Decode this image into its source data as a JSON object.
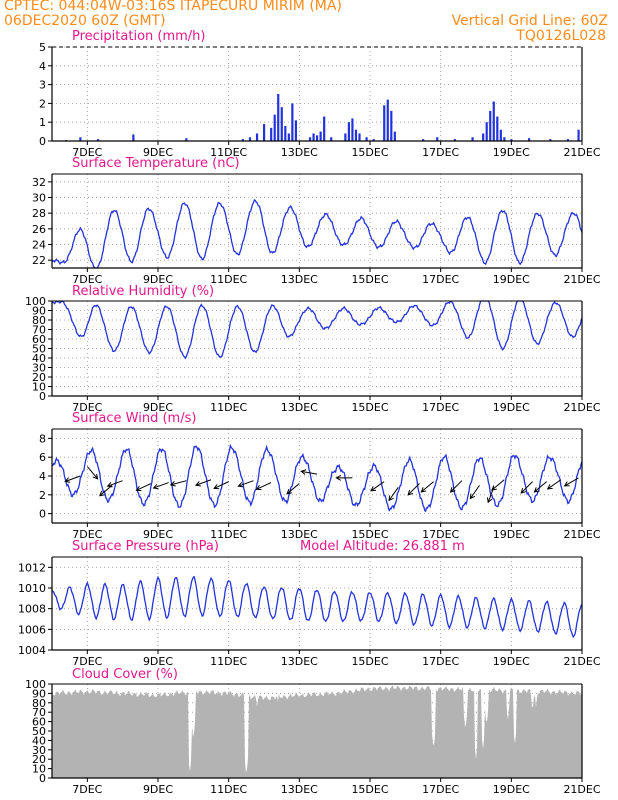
{
  "header": {
    "line1_left": "CPTEC:   044:04W-03:16S   ITAPECURU MIRIM (MA)",
    "line2_left": "06DEC2020 60Z (GMT)",
    "line2_right": "Vertical Grid Line: 60Z",
    "line3_right": "TQ0126L028"
  },
  "colors": {
    "header": "#ff8c1a",
    "title": "#e8178a",
    "series": "#2233dd",
    "cloud": "#b3b3b3",
    "grid": "#999999"
  },
  "x_axis": {
    "start_day": 6.0,
    "end_day": 21.0,
    "tick_days": [
      7,
      9,
      11,
      13,
      15,
      17,
      19,
      21
    ],
    "tick_labels": [
      "7DEC",
      "9DEC",
      "11DEC",
      "13DEC",
      "15DEC",
      "17DEC",
      "19DEC",
      "21DEC"
    ]
  },
  "chart_data": [
    {
      "id": "precip",
      "type": "bar",
      "title": "Precipitation (mm/h)",
      "ylim": [
        0,
        5
      ],
      "yticks": [
        0,
        1,
        2,
        3,
        4,
        5
      ],
      "grid": true,
      "x": [
        6.4,
        6.8,
        7.3,
        8.3,
        9.8,
        11.4,
        11.6,
        11.8,
        12.0,
        12.2,
        12.3,
        12.4,
        12.5,
        12.6,
        12.7,
        12.8,
        12.9,
        13.3,
        13.4,
        13.5,
        13.6,
        13.7,
        13.9,
        14.3,
        14.4,
        14.5,
        14.6,
        14.7,
        14.9,
        15.1,
        15.4,
        15.5,
        15.6,
        15.7,
        16.5,
        16.9,
        17.4,
        17.9,
        18.2,
        18.3,
        18.4,
        18.5,
        18.6,
        18.7,
        18.8,
        19.0,
        19.5,
        20.1,
        20.6,
        20.9
      ],
      "values": [
        0.05,
        0.2,
        0.1,
        0.35,
        0.15,
        0.1,
        0.2,
        0.4,
        0.9,
        0.7,
        1.4,
        2.5,
        1.8,
        0.8,
        0.4,
        2.0,
        1.1,
        0.2,
        0.4,
        0.3,
        0.5,
        1.3,
        0.2,
        0.4,
        1.0,
        1.2,
        0.6,
        0.4,
        0.2,
        0.1,
        1.9,
        2.2,
        1.6,
        0.5,
        0.1,
        0.2,
        0.1,
        0.2,
        0.4,
        1.0,
        1.6,
        2.1,
        1.3,
        0.6,
        0.2,
        0.1,
        0.15,
        0.1,
        0.1,
        0.6
      ]
    },
    {
      "id": "temp",
      "type": "line",
      "title": "Surface Temperature (nC)",
      "ylim": [
        21,
        33
      ],
      "yticks": [
        22,
        24,
        26,
        28,
        30,
        32
      ],
      "grid": true,
      "mean": [
        22.0,
        23.8,
        25.2,
        25.5,
        25.8,
        26.0,
        26.2,
        26.0,
        25.8,
        25.4,
        25.2,
        25.0,
        24.8,
        25.0,
        25.2,
        25.5,
        25.8,
        26.0,
        26.0
      ],
      "amp": [
        0.0,
        3.2,
        3.6,
        3.0,
        3.8,
        3.2,
        3.5,
        2.4,
        1.8,
        1.8,
        1.6,
        1.6,
        3.0,
        3.6,
        2.6,
        2.6,
        2.2,
        3.0,
        3.6
      ],
      "peak_phase": 0.75
    },
    {
      "id": "rh",
      "type": "line",
      "title": "Relative Humidity (%)",
      "ylim": [
        0,
        100
      ],
      "yticks": [
        0,
        10,
        20,
        30,
        40,
        50,
        60,
        70,
        80,
        90,
        100
      ],
      "grid": true,
      "mean": [
        100,
        74,
        70,
        70,
        68,
        68,
        72,
        80,
        82,
        84,
        86,
        85,
        82,
        76,
        78,
        82,
        82,
        84,
        86
      ],
      "amp": [
        0,
        22,
        24,
        24,
        28,
        26,
        24,
        12,
        10,
        8,
        8,
        12,
        24,
        28,
        20,
        18,
        14,
        22,
        24
      ],
      "trough_phase": 0.75
    },
    {
      "id": "wind",
      "type": "line",
      "title": "Surface Wind (m/s)",
      "ylim": [
        -1,
        9
      ],
      "yticks": [
        0,
        2,
        4,
        6,
        8
      ],
      "grid": true,
      "mean": [
        4,
        4.2,
        4.0,
        3.8,
        3.9,
        4.0,
        4.1,
        3.8,
        3.2,
        2.8,
        3.0,
        3.2,
        3.2,
        3.6,
        3.8,
        3.6,
        3.4,
        3.6,
        4.0
      ],
      "amp": [
        1.5,
        2.5,
        2.8,
        3.0,
        3.2,
        3.0,
        2.8,
        2.4,
        1.8,
        2.2,
        2.6,
        2.8,
        2.6,
        2.6,
        2.2,
        2.4,
        2.4,
        2.8,
        2.8
      ],
      "arrows": [
        {
          "x": 6.8,
          "y": 4.0,
          "dir": 250
        },
        {
          "x": 7.0,
          "y": 5.0,
          "dir": 140
        },
        {
          "x": 7.7,
          "y": 3.0,
          "dir": 230
        },
        {
          "x": 8.0,
          "y": 3.5,
          "dir": 250
        },
        {
          "x": 8.8,
          "y": 3.2,
          "dir": 245
        },
        {
          "x": 9.3,
          "y": 3.3,
          "dir": 250
        },
        {
          "x": 9.8,
          "y": 3.5,
          "dir": 255
        },
        {
          "x": 10.5,
          "y": 3.6,
          "dir": 250
        },
        {
          "x": 11.0,
          "y": 3.4,
          "dir": 245
        },
        {
          "x": 11.7,
          "y": 3.5,
          "dir": 250
        },
        {
          "x": 12.2,
          "y": 3.3,
          "dir": 245
        },
        {
          "x": 13.0,
          "y": 3.2,
          "dir": 230
        },
        {
          "x": 13.5,
          "y": 4.2,
          "dir": 280
        },
        {
          "x": 14.5,
          "y": 3.8,
          "dir": 270
        },
        {
          "x": 15.4,
          "y": 3.4,
          "dir": 235
        },
        {
          "x": 15.8,
          "y": 2.8,
          "dir": 215
        },
        {
          "x": 16.4,
          "y": 3.2,
          "dir": 225
        },
        {
          "x": 16.8,
          "y": 3.4,
          "dir": 230
        },
        {
          "x": 17.6,
          "y": 3.5,
          "dir": 225
        },
        {
          "x": 18.1,
          "y": 3.0,
          "dir": 215
        },
        {
          "x": 18.5,
          "y": 2.8,
          "dir": 200
        },
        {
          "x": 18.8,
          "y": 3.6,
          "dir": 230
        },
        {
          "x": 19.6,
          "y": 3.4,
          "dir": 225
        },
        {
          "x": 20.0,
          "y": 3.4,
          "dir": 230
        },
        {
          "x": 20.4,
          "y": 3.6,
          "dir": 235
        },
        {
          "x": 20.9,
          "y": 3.8,
          "dir": 240
        }
      ]
    },
    {
      "id": "press",
      "type": "line",
      "title": "Surface Pressure (hPa)",
      "annotation": "Model Altitude: 26.881  m",
      "ylim": [
        1004,
        1013
      ],
      "yticks": [
        1004,
        1006,
        1008,
        1010,
        1012
      ],
      "grid": true,
      "mean": [
        1009,
        1008.8,
        1008.6,
        1009.0,
        1009.2,
        1009.0,
        1008.6,
        1008.4,
        1008.2,
        1008.2,
        1008.0,
        1007.8,
        1007.6,
        1007.4,
        1007.2,
        1006.8,
        1006.2,
        1005.6,
        1005.2
      ],
      "amp": [
        0.8,
        1.6,
        1.7,
        1.9,
        1.8,
        1.7,
        1.5,
        1.6,
        1.5,
        1.4,
        1.5,
        1.5,
        1.4,
        1.4,
        1.4,
        1.6,
        1.6,
        1.5,
        1.4
      ]
    },
    {
      "id": "cloud",
      "type": "area",
      "title": "Cloud Cover (%)",
      "ylim": [
        0,
        100
      ],
      "yticks": [
        0,
        10,
        20,
        30,
        40,
        50,
        60,
        70,
        80,
        90,
        100
      ],
      "grid": true,
      "base": [
        90,
        92,
        90,
        88,
        92,
        90,
        85,
        88,
        90,
        95,
        96,
        95,
        94,
        93,
        92,
        90,
        88,
        86,
        86
      ],
      "dips": [
        {
          "x": 9.9,
          "v": 5
        },
        {
          "x": 10.0,
          "v": 40
        },
        {
          "x": 11.5,
          "v": 2
        },
        {
          "x": 11.8,
          "v": 75
        },
        {
          "x": 12.4,
          "v": 80
        },
        {
          "x": 16.8,
          "v": 30
        },
        {
          "x": 17.7,
          "v": 50
        },
        {
          "x": 18.0,
          "v": 20
        },
        {
          "x": 18.2,
          "v": 30
        },
        {
          "x": 18.3,
          "v": 55
        },
        {
          "x": 18.9,
          "v": 60
        },
        {
          "x": 19.1,
          "v": 35
        },
        {
          "x": 19.6,
          "v": 70
        },
        {
          "x": 19.7,
          "v": 75
        }
      ]
    }
  ]
}
